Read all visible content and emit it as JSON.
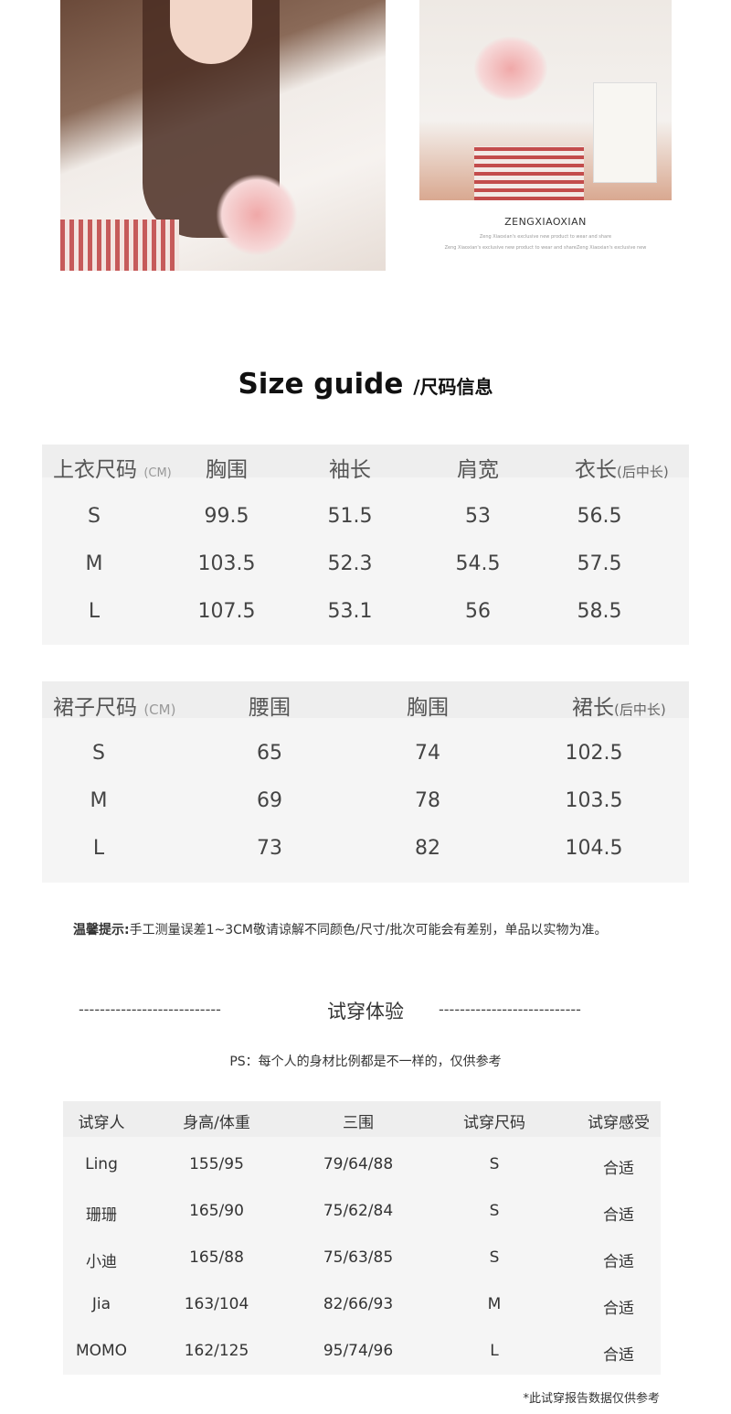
{
  "brand": {
    "name": "ZENGXIAOXIAN",
    "line1": "Zeng Xiaoxian's exclusive new product to wear and share",
    "line2": "Zeng Xiaoxian's exclusive new product to wear and shareZeng Xiaoxian's exclusive new"
  },
  "size_guide": {
    "title": "Size guide",
    "subtitle": "/尺码信息"
  },
  "top_table": {
    "label": "上衣尺码",
    "unit": "(CM)",
    "headers": [
      "胸围",
      "袖长",
      "肩宽",
      "衣长"
    ],
    "last_header_note": "(后中长)",
    "rows": [
      [
        "S",
        "99.5",
        "51.5",
        "53",
        "56.5"
      ],
      [
        "M",
        "103.5",
        "52.3",
        "54.5",
        "57.5"
      ],
      [
        "L",
        "107.5",
        "53.1",
        "56",
        "58.5"
      ]
    ]
  },
  "skirt_table": {
    "label": "裙子尺码",
    "unit": "(CM)",
    "headers": [
      "腰围",
      "胸围",
      "裙长"
    ],
    "last_header_note": "(后中长)",
    "rows": [
      [
        "S",
        "65",
        "74",
        "102.5"
      ],
      [
        "M",
        "69",
        "78",
        "103.5"
      ],
      [
        "L",
        "73",
        "82",
        "104.5"
      ]
    ]
  },
  "notice": {
    "label": "温馨提示:",
    "text": "手工测量误差1~3CM敬请谅解不同颜色/尺寸/批次可能会有差别，单品以实物为准。"
  },
  "trial": {
    "title": "试穿体验",
    "dashes": "---------------------------",
    "ps": "PS：每个人的身材比例都是不一样的，仅供参考",
    "headers": [
      "试穿人",
      "身高/体重",
      "三围",
      "试穿尺码",
      "试穿感受"
    ],
    "rows": [
      [
        "Ling",
        "155/95",
        "79/64/88",
        "S",
        "合适"
      ],
      [
        "珊珊",
        "165/90",
        "75/62/84",
        "S",
        "合适"
      ],
      [
        "小迪",
        "165/88",
        "75/63/85",
        "S",
        "合适"
      ],
      [
        "Jia",
        "163/104",
        "82/66/93",
        "M",
        "合适"
      ],
      [
        "MOMO",
        "162/125",
        "95/74/96",
        "L",
        "合适"
      ]
    ],
    "footnote": "*此试穿报告数据仅供参考"
  }
}
